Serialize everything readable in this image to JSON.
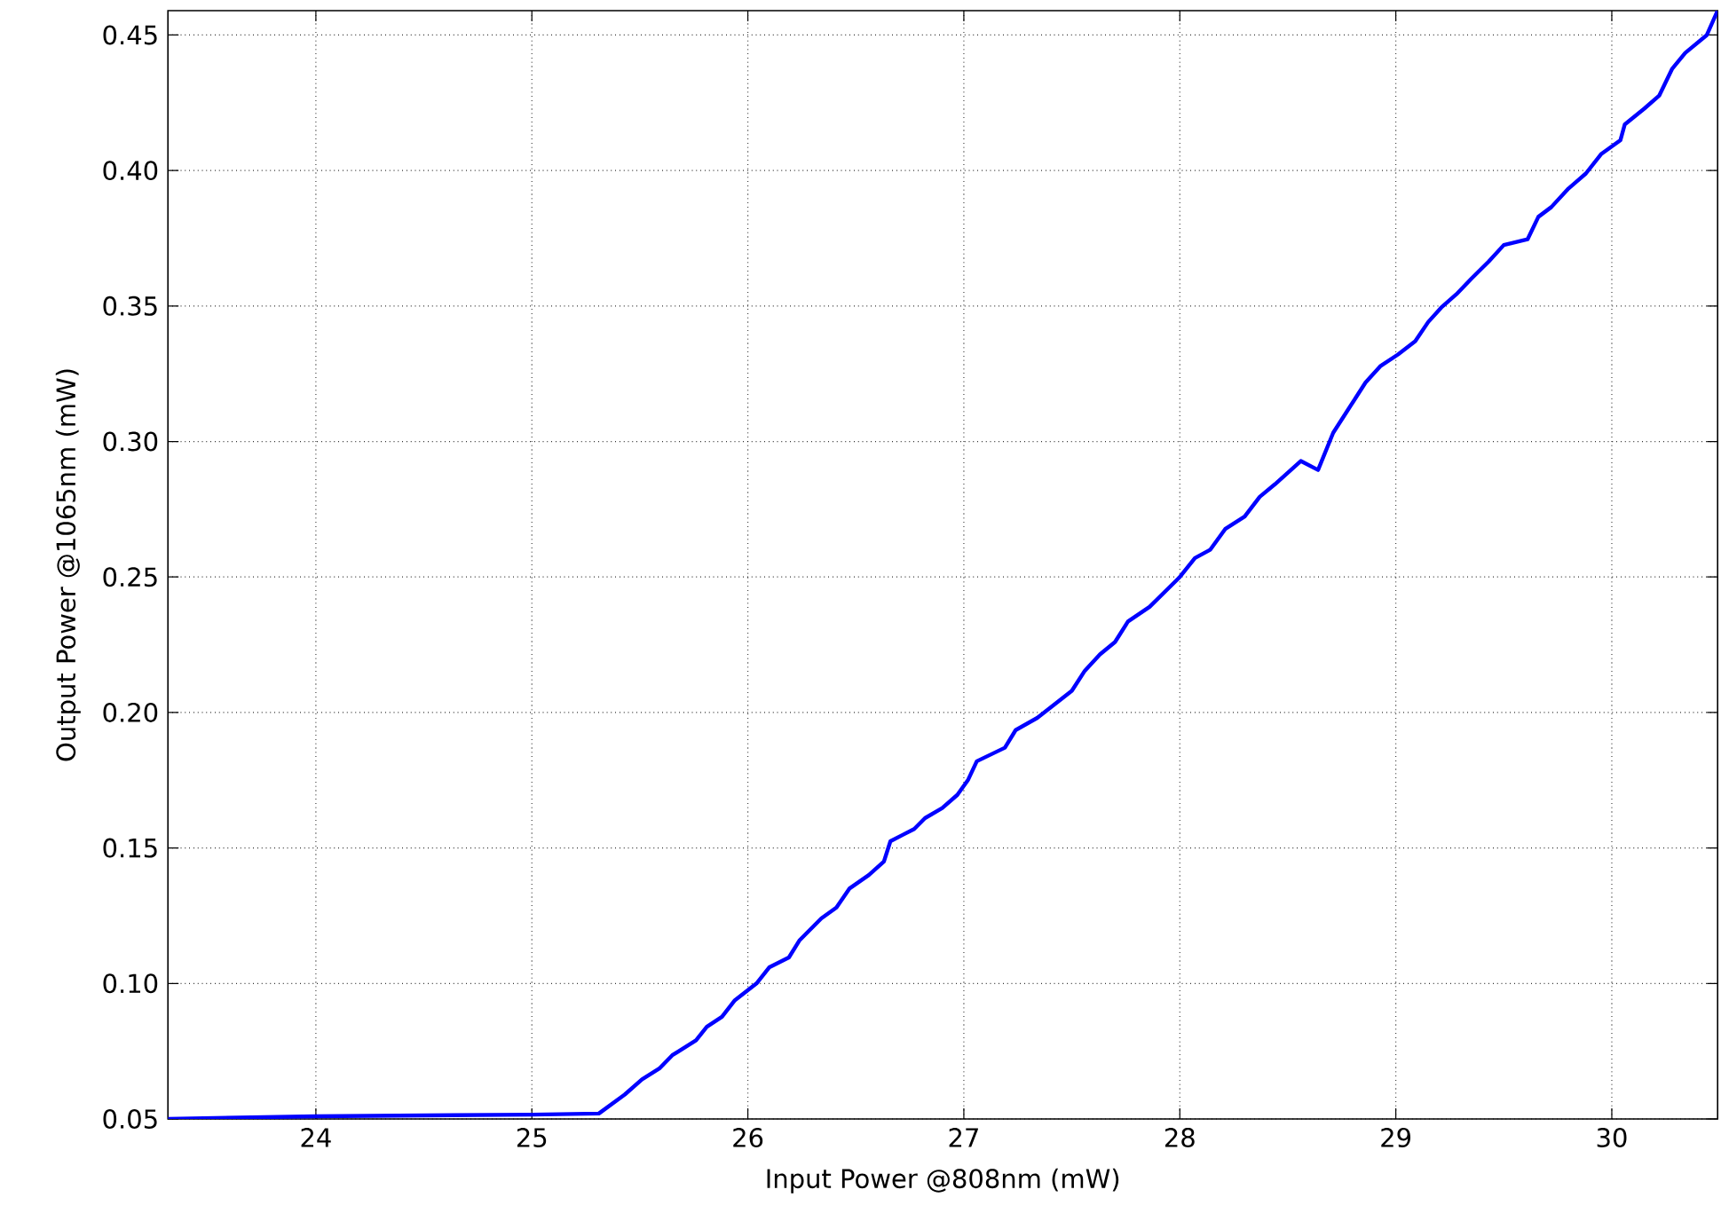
{
  "chart_data": {
    "type": "line",
    "xlabel": "Input Power @808nm (mW)",
    "ylabel": "Output Power @1065nm (mW)",
    "xlim": [
      23.315,
      30.49
    ],
    "ylim": [
      0.05,
      0.459
    ],
    "xticks": [
      24,
      25,
      26,
      27,
      28,
      29,
      30
    ],
    "yticks": [
      {
        "value": 0.05,
        "label": "0.05"
      },
      {
        "value": 0.1,
        "label": "0.10"
      },
      {
        "value": 0.15,
        "label": "0.15"
      },
      {
        "value": 0.2,
        "label": "0.20"
      },
      {
        "value": 0.25,
        "label": "0.25"
      },
      {
        "value": 0.3,
        "label": "0.30"
      },
      {
        "value": 0.35,
        "label": "0.35"
      },
      {
        "value": 0.4,
        "label": "0.40"
      },
      {
        "value": 0.45,
        "label": "0.45"
      }
    ],
    "grid": true,
    "marker": "none",
    "line_style": "solid",
    "series": [
      {
        "color": "#0000ff",
        "x": [
          23.315,
          24.0,
          25.0,
          25.31,
          25.43,
          25.51,
          25.59,
          25.65,
          25.76,
          25.81,
          25.88,
          25.94,
          26.04,
          26.1,
          26.19,
          26.24,
          26.34,
          26.41,
          26.47,
          26.56,
          26.63,
          26.66,
          26.77,
          26.82,
          26.9,
          26.97,
          27.02,
          27.06,
          27.19,
          27.24,
          27.34,
          27.42,
          27.5,
          27.56,
          27.63,
          27.7,
          27.76,
          27.86,
          28.0,
          28.07,
          28.14,
          28.21,
          28.3,
          28.37,
          28.44,
          28.56,
          28.64,
          28.71,
          28.78,
          28.86,
          28.93,
          29.01,
          29.09,
          29.15,
          29.21,
          29.28,
          29.35,
          29.43,
          29.5,
          29.61,
          29.66,
          29.72,
          29.8,
          29.88,
          29.95,
          30.04,
          30.06,
          30.15,
          30.22,
          30.28,
          30.34,
          30.44,
          30.49
        ],
        "values": [
          0.05,
          0.051,
          0.0516,
          0.052,
          0.059,
          0.0646,
          0.0686,
          0.0735,
          0.079,
          0.084,
          0.0877,
          0.0938,
          0.1,
          0.106,
          0.1096,
          0.116,
          0.124,
          0.128,
          0.135,
          0.14,
          0.145,
          0.1525,
          0.157,
          0.161,
          0.1647,
          0.1696,
          0.1752,
          0.182,
          0.187,
          0.1935,
          0.198,
          0.203,
          0.208,
          0.2154,
          0.2214,
          0.226,
          0.2336,
          0.239,
          0.25,
          0.257,
          0.26,
          0.2677,
          0.2723,
          0.2796,
          0.2842,
          0.2928,
          0.2895,
          0.3032,
          0.3119,
          0.3218,
          0.3279,
          0.3321,
          0.337,
          0.3441,
          0.3494,
          0.3543,
          0.3601,
          0.3664,
          0.3725,
          0.3746,
          0.3829,
          0.3865,
          0.3934,
          0.3989,
          0.406,
          0.4112,
          0.417,
          0.4228,
          0.4277,
          0.4376,
          0.4434,
          0.45,
          0.459
        ]
      }
    ]
  }
}
